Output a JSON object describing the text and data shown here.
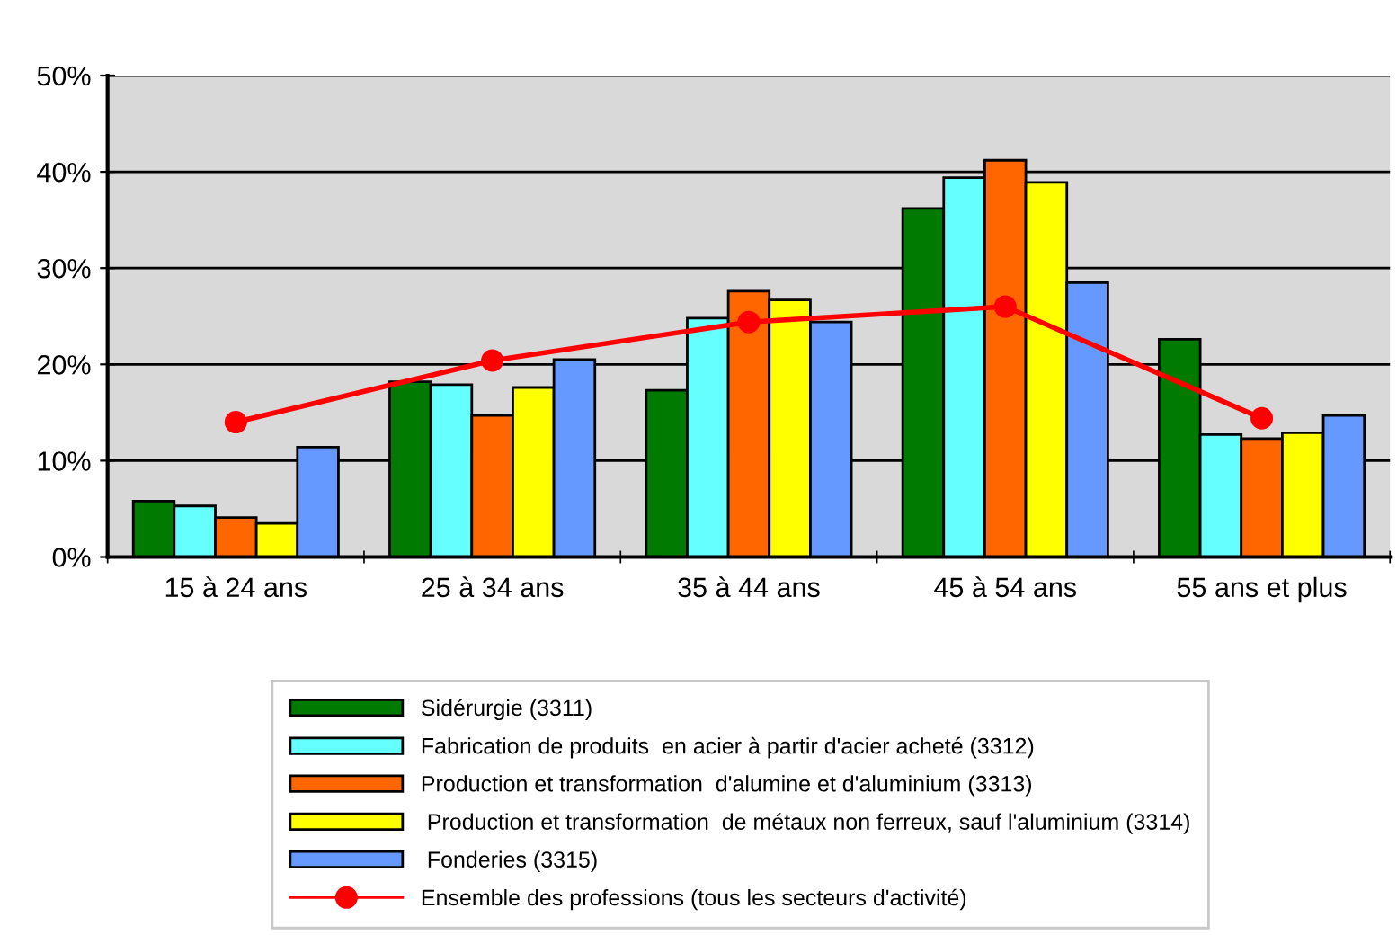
{
  "chart_data": {
    "type": "bar",
    "categories": [
      "15 à 24 ans",
      "25 à 34 ans",
      "35 à 44 ans",
      "45 à 54 ans",
      "55 ans et plus"
    ],
    "series": [
      {
        "name": "Sidérurgie (3311)",
        "color": "#007a00",
        "values": [
          5.8,
          18.2,
          17.3,
          36.2,
          22.6
        ]
      },
      {
        "name": "Fabrication de produits  en acier à partir d'acier acheté (3312)",
        "color": "#66ffff",
        "values": [
          5.3,
          17.9,
          24.8,
          39.4,
          12.7
        ]
      },
      {
        "name": "Production et transformation  d'alumine et d'aluminium (3313)",
        "color": "#ff6600",
        "values": [
          4.1,
          14.7,
          27.6,
          41.2,
          12.3
        ]
      },
      {
        "name": " Production et transformation  de métaux non ferreux, sauf l'aluminium (3314)",
        "color": "#ffff00",
        "values": [
          3.5,
          17.6,
          26.7,
          38.9,
          12.9
        ]
      },
      {
        "name": " Fonderies (3315)",
        "color": "#6699ff",
        "values": [
          11.4,
          20.5,
          24.4,
          28.5,
          14.7
        ]
      },
      {
        "name": "Ensemble des professions (tous les secteurs d'activité)",
        "type": "line",
        "color": "#ff0000",
        "marker": "circle",
        "values": [
          14.0,
          20.4,
          24.4,
          26.0,
          14.4
        ]
      }
    ],
    "ylim": [
      0,
      50
    ],
    "yticks": [
      {
        "value": 0,
        "label": "0%"
      },
      {
        "value": 10,
        "label": "10%"
      },
      {
        "value": 20,
        "label": "20%"
      },
      {
        "value": 30,
        "label": "30%"
      },
      {
        "value": 40,
        "label": "40%"
      },
      {
        "value": 50,
        "label": "50%"
      }
    ],
    "grid": "y",
    "legend": "bottom"
  }
}
